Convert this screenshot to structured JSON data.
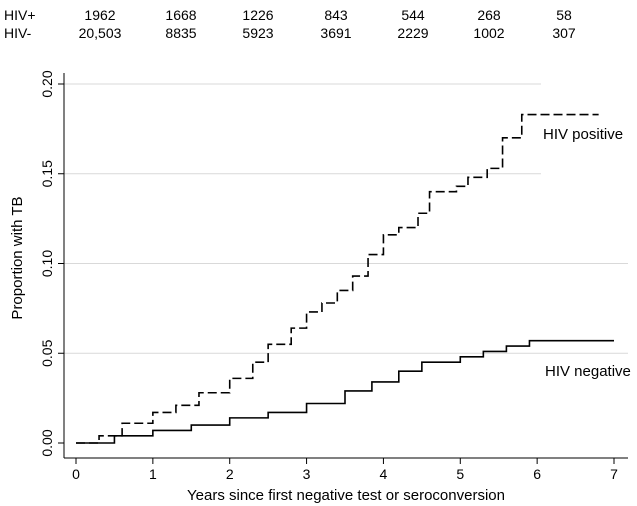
{
  "chart_data": {
    "type": "line",
    "xlabel": "Years since first negative test or seroconversion",
    "ylabel": "Proportion with TB",
    "xlim": [
      0,
      7
    ],
    "ylim": [
      0,
      0.2
    ],
    "x_ticks": [
      "0",
      "1",
      "2",
      "3",
      "4",
      "5",
      "6",
      "7"
    ],
    "y_ticks": [
      "0.00",
      "0.05",
      "0.10",
      "0.15",
      "0.20"
    ],
    "grid": "horizontal",
    "step": true,
    "series": [
      {
        "name": "HIV positive",
        "line_style": "dashed",
        "points": [
          [
            0,
            0
          ],
          [
            0.3,
            0.004
          ],
          [
            0.6,
            0.011
          ],
          [
            1,
            0.017
          ],
          [
            1.3,
            0.021
          ],
          [
            1.6,
            0.028
          ],
          [
            2,
            0.036
          ],
          [
            2.3,
            0.045
          ],
          [
            2.5,
            0.055
          ],
          [
            2.8,
            0.064
          ],
          [
            3,
            0.073
          ],
          [
            3.2,
            0.078
          ],
          [
            3.4,
            0.085
          ],
          [
            3.6,
            0.093
          ],
          [
            3.8,
            0.105
          ],
          [
            4,
            0.116
          ],
          [
            4.2,
            0.12
          ],
          [
            4.45,
            0.128
          ],
          [
            4.6,
            0.14
          ],
          [
            4.95,
            0.143
          ],
          [
            5.1,
            0.148
          ],
          [
            5.35,
            0.153
          ],
          [
            5.55,
            0.17
          ],
          [
            5.8,
            0.183
          ],
          [
            6.8,
            0.183
          ]
        ]
      },
      {
        "name": "HIV negative",
        "line_style": "solid",
        "points": [
          [
            0,
            0
          ],
          [
            0.5,
            0.004
          ],
          [
            1,
            0.007
          ],
          [
            1.5,
            0.01
          ],
          [
            2,
            0.014
          ],
          [
            2.5,
            0.017
          ],
          [
            3,
            0.022
          ],
          [
            3.5,
            0.029
          ],
          [
            3.85,
            0.034
          ],
          [
            4.2,
            0.04
          ],
          [
            4.5,
            0.045
          ],
          [
            5,
            0.048
          ],
          [
            5.3,
            0.051
          ],
          [
            5.6,
            0.054
          ],
          [
            5.9,
            0.057
          ],
          [
            7,
            0.057
          ]
        ]
      }
    ],
    "annotations": [
      {
        "label": "HIV positive"
      },
      {
        "label": "HIV negative"
      }
    ],
    "risk_table": {
      "rows": [
        {
          "label": "HIV+",
          "values": [
            "1962",
            "1668",
            "1226",
            "843",
            "544",
            "268",
            "58"
          ]
        },
        {
          "label": "HIV-",
          "values": [
            "20,503",
            "8835",
            "5923",
            "3691",
            "2229",
            "1002",
            "307"
          ]
        }
      ]
    }
  }
}
